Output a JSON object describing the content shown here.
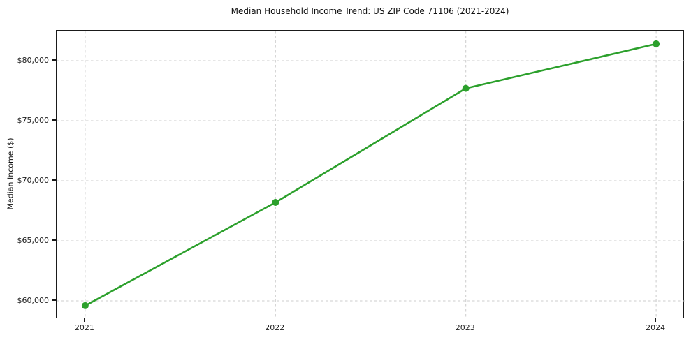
{
  "chart_data": {
    "type": "line",
    "title": "Median Household Income Trend: US ZIP Code 71106 (2021-2024)",
    "xlabel": "",
    "ylabel": "Median Income ($)",
    "x": [
      2021,
      2022,
      2023,
      2024
    ],
    "x_tick_labels": [
      "2021",
      "2022",
      "2023",
      "2024"
    ],
    "values": [
      59600,
      68200,
      77700,
      81400
    ],
    "series_name": "Median Household Income",
    "y_ticks": [
      60000,
      65000,
      70000,
      75000,
      80000
    ],
    "y_tick_labels": [
      "$60,000",
      "$65,000",
      "$70,000",
      "$75,000",
      "$80,000"
    ],
    "xlim": [
      2020.85,
      2024.15
    ],
    "ylim": [
      58490,
      82500
    ],
    "grid": true,
    "grid_style": "dashed",
    "grid_color": "#cccccc",
    "line_color": "#2ca02c",
    "marker": "circle",
    "marker_size": 5,
    "legend": null,
    "background_color": "#ffffff",
    "spine_color": "#1a1a1a"
  }
}
